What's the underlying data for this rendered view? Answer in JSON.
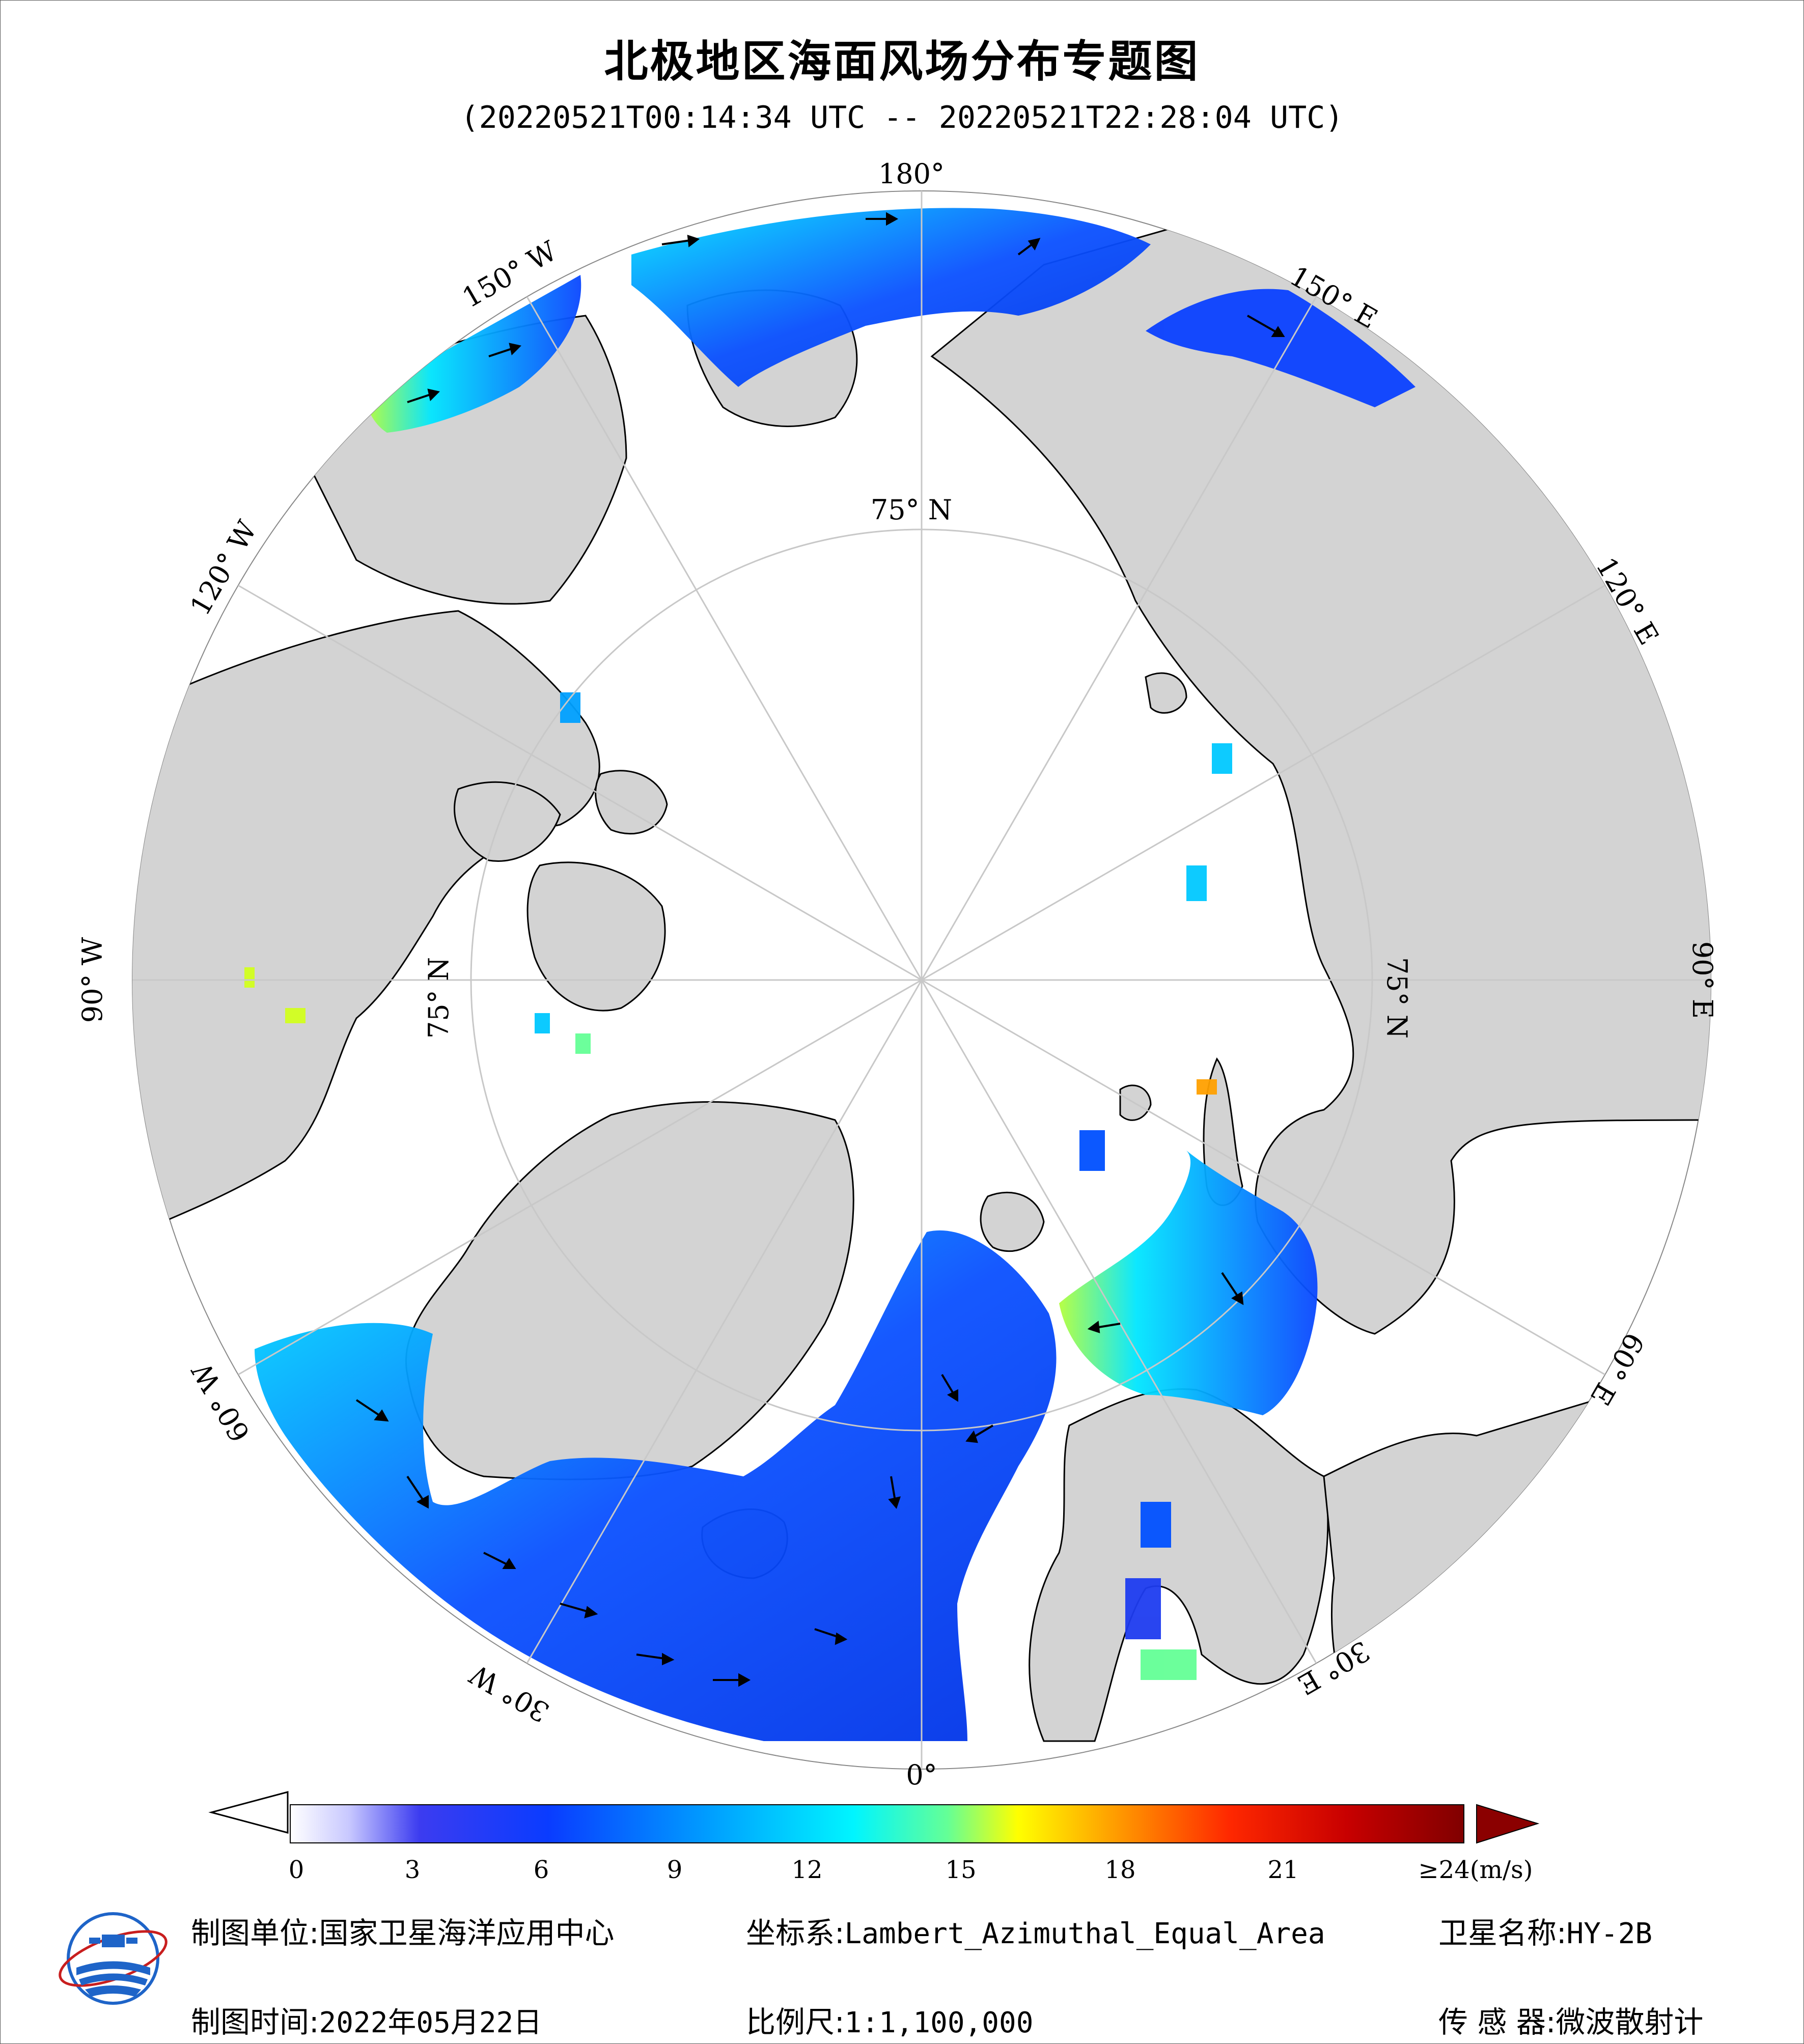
{
  "title": "北极地区海面风场分布专题图",
  "subtitle": "(20220521T00:14:34 UTC -- 20220521T22:28:04 UTC)",
  "map": {
    "projection": "Lambert_Azimuthal_Equal_Area",
    "center": "North Pole",
    "longitude_labels": {
      "top": "180°",
      "bottom": "0°",
      "left": "90° W",
      "right": "90° E",
      "w150": "150° W",
      "w120": "120° W",
      "w60": "60° W",
      "w30": "30° W",
      "e150": "150° E",
      "e120": "120° E",
      "e60": "60° E",
      "e30": "30° E"
    },
    "latitude_labels": {
      "top": "75° N",
      "left": "75° N",
      "right": "75° N",
      "bottom": "75° N"
    },
    "colors": {
      "land": "#d3d3d3",
      "sea_ice": "#ffffff",
      "coastline": "#000000",
      "graticule": "#c8c8c8"
    },
    "legend_unit": "(m/s)"
  },
  "colorbar": {
    "ticks": [
      "0",
      "3",
      "6",
      "9",
      "12",
      "15",
      "18",
      "21",
      "≥24(m/s)"
    ],
    "tick_values": [
      0,
      3,
      6,
      9,
      12,
      15,
      18,
      21,
      24
    ],
    "min": 0,
    "max": 24,
    "colors": [
      "#ffffff",
      "#e6e6fa",
      "#c8c8ff",
      "#a0a0f5",
      "#7878f0",
      "#4646e6",
      "#1e1ee6",
      "#0a28f0",
      "#0050ff",
      "#0078ff",
      "#00a0ff",
      "#00c8ff",
      "#00f0ff",
      "#28ffd2",
      "#64ff96",
      "#a0ff5a",
      "#d2ff1e",
      "#ffff00",
      "#ffd200",
      "#ffa000",
      "#ff6e00",
      "#ff3c00",
      "#e60000",
      "#b40000",
      "#8b0000"
    ]
  },
  "footer": {
    "unit_label": "制图单位:",
    "unit_value": "国家卫星海洋应用中心",
    "date_label": "制图时间:",
    "date_value": "2022年05月22日",
    "coord_label": "坐标系:",
    "coord_value": "Lambert_Azimuthal_Equal_Area",
    "scale_label": "比例尺:",
    "scale_value": "1:1,100,000",
    "satellite_label": "卫星名称:",
    "satellite_value": "HY-2B",
    "sensor_label": "传 感 器:",
    "sensor_value": "微波散射计"
  }
}
